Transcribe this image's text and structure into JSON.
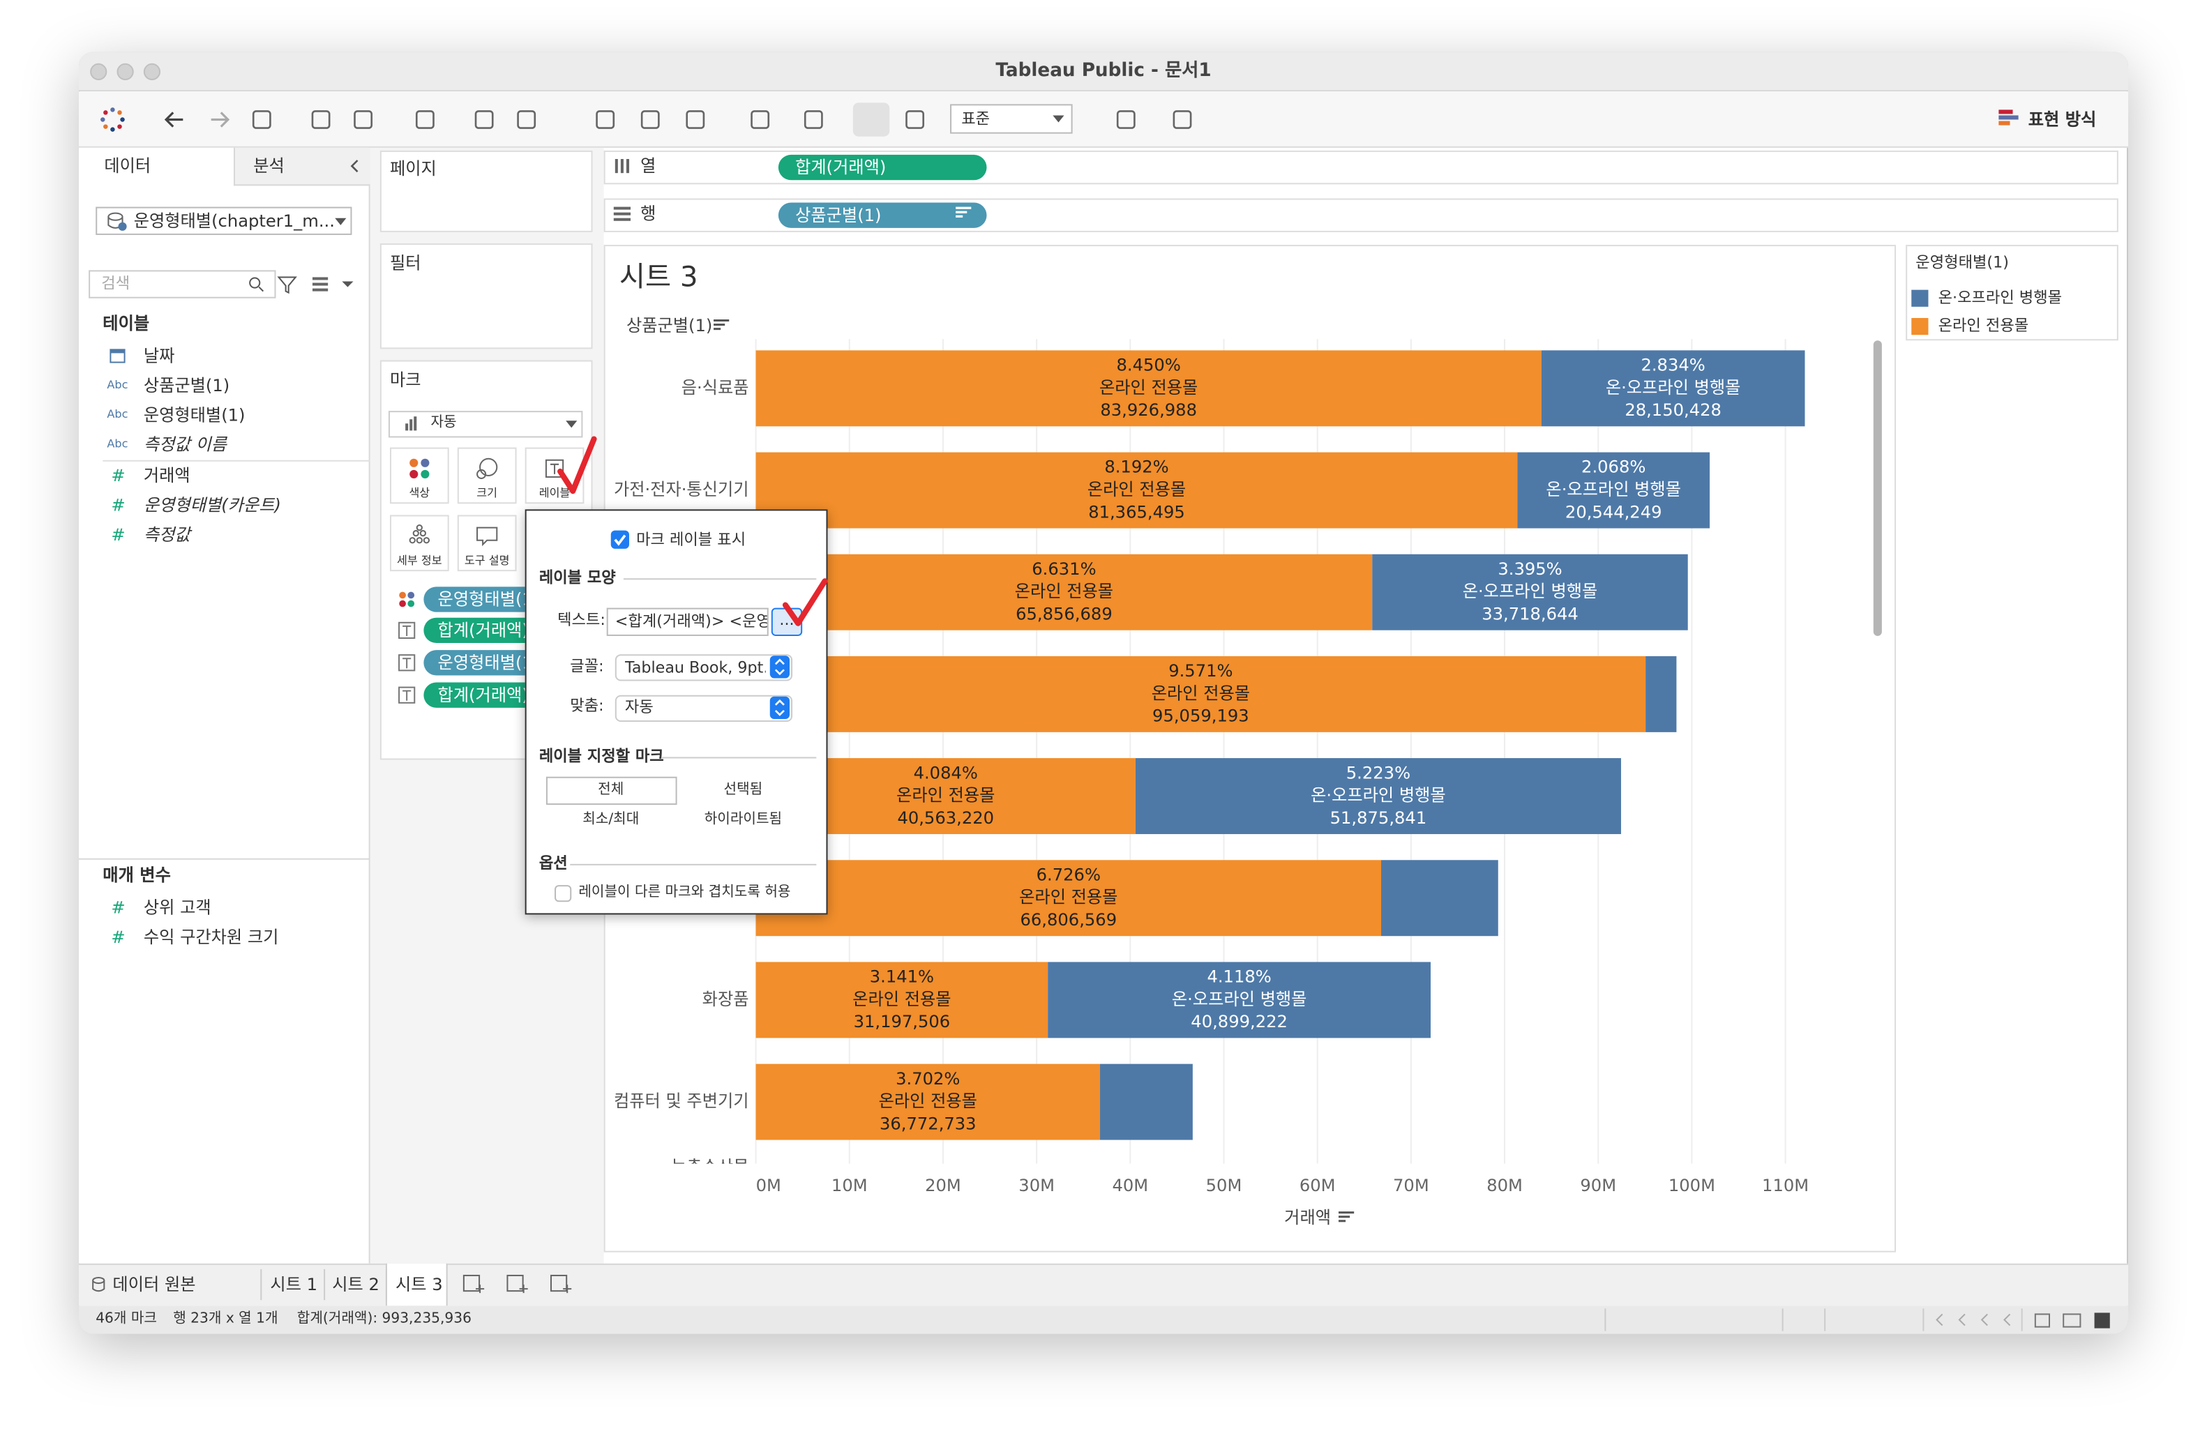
{
  "window": {
    "title": "Tableau Public - 문서1"
  },
  "toolbar": {
    "view_size": "표준",
    "show_me": "표현 방식"
  },
  "data_pane": {
    "tabs": [
      "데이터",
      "분석"
    ],
    "datasource": "운영형태별(chapter1_m...",
    "search": "검색",
    "tables_title": "테이블",
    "fields": [
      {
        "name": "날짜"
      },
      {
        "icon": "Abc",
        "name": "상품군별(1)"
      },
      {
        "icon": "Abc",
        "name": "운영형태별(1)"
      },
      {
        "icon": "Abc",
        "name": "측정값 이름",
        "italic": true
      },
      {
        "icon": "#",
        "name": "거래액"
      },
      {
        "icon": "#",
        "name": "운영형태별(카운트)",
        "italic": true
      },
      {
        "icon": "#",
        "name": "측정값",
        "italic": true
      }
    ],
    "params_title": "매개 변수",
    "params": [
      {
        "icon": "#",
        "name": "상위 고객"
      },
      {
        "icon": "#",
        "name": "수익 구간차원 크기"
      }
    ]
  },
  "shelves": {
    "pages": "페이지",
    "filters": "필터",
    "marks": "마크",
    "mark_type": "자동",
    "mark_buttons": [
      "색상",
      "크기",
      "레이블",
      "세부 정보",
      "도구 설명"
    ],
    "mark_pills": [
      "운영형태별(1)",
      "합계(거래액)",
      "운영형태별(1)",
      "합계(거래액)"
    ],
    "columns": {
      "label": "열",
      "pill": "합계(거래액)"
    },
    "rows": {
      "label": "행",
      "pill": "상품군별(1)"
    }
  },
  "label_popup": {
    "show_labels": "마크 레이블 표시",
    "appearance": "레이블 모양",
    "text_label": "텍스트:",
    "text_value": "<합계(거래액)> <운영형",
    "more": "...",
    "font_label": "글꼴:",
    "font_value": "Tableau Book, 9pt...",
    "align_label": "맞춤:",
    "align_value": "자동",
    "marks_title": "레이블 지정할 마크",
    "marks_options": [
      "전체",
      "선택됨",
      "최소/최대",
      "하이라이트됨"
    ],
    "options_title": "옵션",
    "overlap": "레이블이 다른 마크와 겹치도록 허용"
  },
  "bottom": {
    "tabs": [
      "데이터 원본",
      "시트 1",
      "시트 2",
      "시트 3"
    ],
    "status": [
      "46개 마크",
      "행 23개 x 열 1개",
      "합계(거래액): 993,235,936"
    ]
  },
  "chart_data": {
    "type": "bar",
    "title": "시트 3",
    "y_label": "상품군별(1)",
    "x_label": "거래액",
    "legend_title": "운영형태별(1)",
    "categories": [
      "음·식료품",
      "가전·전자·통신기기",
      null,
      null,
      null,
      null,
      "화장품",
      "컴퓨터 및 주변기기",
      "농축수산물"
    ],
    "series": [
      {
        "name": "온라인 전용몰",
        "color": "#f28e2b",
        "label_color": "#222222",
        "values": [
          83926988,
          81365495,
          65856689,
          95059193,
          40563220,
          66806569,
          31197506,
          36772733,
          null
        ],
        "share_labels": [
          "8.450%",
          "8.192%",
          "6.631%",
          "9.571%",
          "4.084%",
          "6.726%",
          "3.141%",
          "3.702%",
          null
        ],
        "value_labels": [
          "83,926,988",
          "81,365,495",
          "65,856,689",
          "95,059,193",
          "40,563,220",
          "66,806,569",
          "31,197,506",
          "36,772,733",
          null
        ]
      },
      {
        "name": "온·오프라인 병행몰",
        "color": "#4e79a7",
        "label_color": "#ffffff",
        "values": [
          28150428,
          20544249,
          33718644,
          3300000,
          51875841,
          12500000,
          40899222,
          9900000,
          null
        ],
        "share_labels": [
          "2.834%",
          "2.068%",
          "3.395%",
          null,
          "5.223%",
          null,
          "4.118%",
          null,
          null
        ],
        "value_labels": [
          "28,150,428",
          "20,544,249",
          "33,718,644",
          null,
          "51,875,841",
          null,
          "40,899,222",
          null,
          null
        ]
      }
    ],
    "xlim": [
      0,
      118500000
    ],
    "xticks": [
      {
        "value": 0,
        "label": "0M"
      },
      {
        "value": 10000000,
        "label": "10M"
      },
      {
        "value": 20000000,
        "label": "20M"
      },
      {
        "value": 30000000,
        "label": "30M"
      },
      {
        "value": 40000000,
        "label": "40M"
      },
      {
        "value": 50000000,
        "label": "50M"
      },
      {
        "value": 60000000,
        "label": "60M"
      },
      {
        "value": 70000000,
        "label": "70M"
      },
      {
        "value": 80000000,
        "label": "80M"
      },
      {
        "value": 90000000,
        "label": "90M"
      },
      {
        "value": 100000000,
        "label": "100M"
      },
      {
        "value": 110000000,
        "label": "110M"
      }
    ],
    "grid": true
  }
}
